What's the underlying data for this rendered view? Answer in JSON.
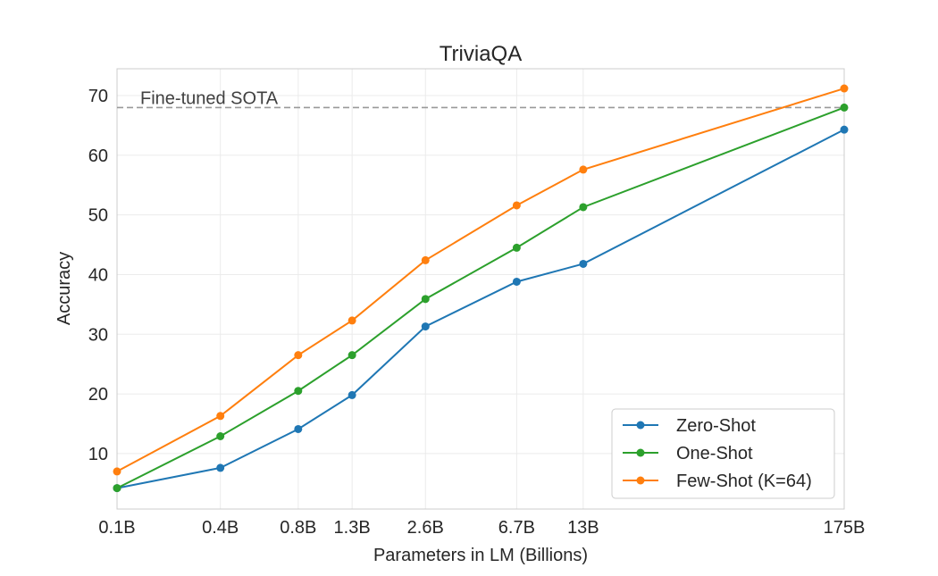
{
  "chart_data": {
    "type": "line",
    "title": "TriviaQA",
    "xlabel": "Parameters in LM (Billions)",
    "ylabel": "Accuracy",
    "x_scale": "log",
    "x": [
      0.125,
      0.35,
      0.76,
      1.3,
      2.7,
      6.7,
      13,
      175
    ],
    "x_tick_labels": [
      "0.1B",
      "0.4B",
      "0.8B",
      "1.3B",
      "2.6B",
      "6.7B",
      "13B",
      "175B"
    ],
    "xlim": [
      0.125,
      175
    ],
    "ylim": [
      0.7,
      74.5
    ],
    "y_ticks": [
      10,
      20,
      30,
      40,
      50,
      60,
      70
    ],
    "grid": true,
    "legend_position": "lower-right",
    "series": [
      {
        "name": "Zero-Shot",
        "color": "#1f77b4",
        "values": [
          4.2,
          7.6,
          14.1,
          19.8,
          31.3,
          38.8,
          41.8,
          64.3
        ]
      },
      {
        "name": "One-Shot",
        "color": "#2ca02c",
        "values": [
          4.2,
          12.9,
          20.5,
          26.5,
          35.9,
          44.5,
          51.3,
          68.0
        ]
      },
      {
        "name": "Few-Shot (K=64)",
        "color": "#ff7f0e",
        "values": [
          7.0,
          16.3,
          26.5,
          32.3,
          42.4,
          51.6,
          57.6,
          71.2
        ]
      }
    ],
    "reference_line": {
      "label": "Fine-tuned SOTA",
      "value": 68.0,
      "color": "#999999"
    }
  }
}
